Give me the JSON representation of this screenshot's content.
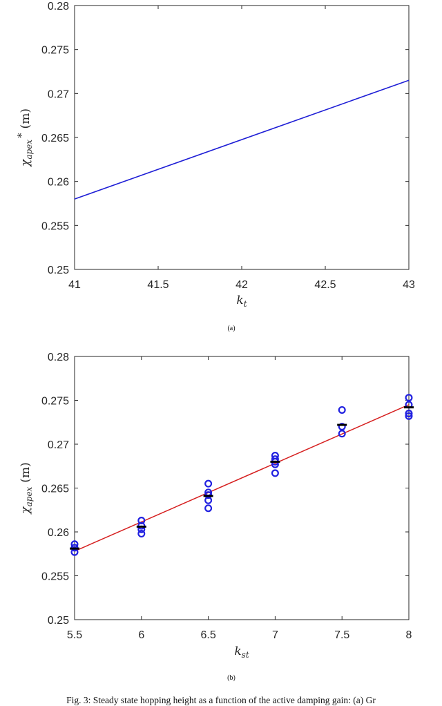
{
  "chart_data": [
    {
      "type": "line",
      "panel_label": "(a)",
      "xlabel_main": "k",
      "xlabel_sub": "t",
      "ylabel_main": "χ",
      "ylabel_sub": "apex",
      "ylabel_sup": "*",
      "ylabel_unit": "(m)",
      "xlim": [
        41,
        43
      ],
      "ylim": [
        0.25,
        0.28
      ],
      "xticks": [
        "41",
        "41.5",
        "42",
        "42.5",
        "43"
      ],
      "yticks": [
        "0.25",
        "0.255",
        "0.26",
        "0.265",
        "0.27",
        "0.275",
        "0.28"
      ],
      "grid": false,
      "series": [
        {
          "color": "#1f1fd6",
          "x": [
            41,
            43
          ],
          "y": [
            0.258,
            0.2715
          ]
        }
      ]
    },
    {
      "type": "scatter",
      "panel_label": "(b)",
      "xlabel_main": "k",
      "xlabel_sub": "st",
      "ylabel_main": "χ",
      "ylabel_sub": "apex",
      "ylabel_unit": "(m)",
      "xlim": [
        5.5,
        8
      ],
      "ylim": [
        0.25,
        0.28
      ],
      "xticks": [
        "5.5",
        "6",
        "6.5",
        "7",
        "7.5",
        "8"
      ],
      "yticks": [
        "0.25",
        "0.255",
        "0.26",
        "0.265",
        "0.27",
        "0.275",
        "0.28"
      ],
      "grid": false,
      "fit_line": {
        "color": "#d62020",
        "x": [
          5.5,
          8
        ],
        "y": [
          0.2578,
          0.2745
        ]
      },
      "points": {
        "color": "#2020e0",
        "x": [
          5.5,
          5.5,
          5.5,
          6,
          6,
          6,
          6,
          6.5,
          6.5,
          6.5,
          6.5,
          6.5,
          7,
          7,
          7,
          7,
          7,
          7.5,
          7.5,
          7.5,
          8,
          8,
          8,
          8
        ],
        "y": [
          0.2586,
          0.2582,
          0.2577,
          0.2613,
          0.2607,
          0.2603,
          0.2598,
          0.2655,
          0.2645,
          0.2636,
          0.2627,
          0.2642,
          0.2687,
          0.2683,
          0.2677,
          0.2667,
          0.268,
          0.2739,
          0.272,
          0.2712,
          0.2753,
          0.2745,
          0.2735,
          0.2732
        ]
      },
      "means": {
        "color": "#000000",
        "x": [
          5.5,
          6,
          6.5,
          7,
          7.5,
          8
        ],
        "y": [
          0.2581,
          0.2606,
          0.2641,
          0.268,
          0.2722,
          0.2742
        ]
      }
    }
  ],
  "caption": "Fig. 3: Steady state hopping height as a function of the active damping gain: (a) Gr"
}
